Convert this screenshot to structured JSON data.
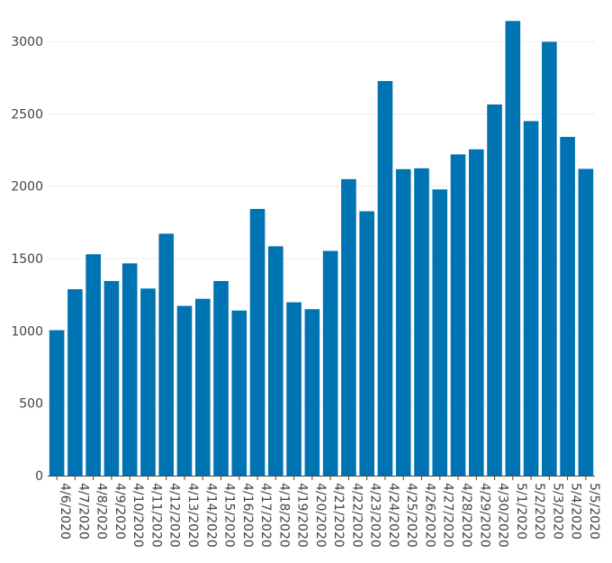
{
  "chart_data": {
    "type": "bar",
    "title": "",
    "xlabel": "",
    "ylabel": "",
    "categories": [
      "4/6/2020",
      "4/7/2020",
      "4/8/2020",
      "4/9/2020",
      "4/10/2020",
      "4/11/2020",
      "4/12/2020",
      "4/13/2020",
      "4/14/2020",
      "4/15/2020",
      "4/16/2020",
      "4/17/2020",
      "4/18/2020",
      "4/19/2020",
      "4/20/2020",
      "4/21/2020",
      "4/22/2020",
      "4/23/2020",
      "4/24/2020",
      "4/25/2020",
      "4/26/2020",
      "4/27/2020",
      "4/28/2020",
      "4/29/2020",
      "4/30/2020",
      "5/1/2020",
      "5/2/2020",
      "5/3/2020",
      "5/4/2020",
      "5/5/2020"
    ],
    "values": [
      1005,
      1288,
      1530,
      1345,
      1467,
      1293,
      1672,
      1173,
      1222,
      1345,
      1141,
      1843,
      1585,
      1198,
      1150,
      1553,
      2049,
      1827,
      2727,
      2118,
      2124,
      1978,
      2220,
      2255,
      2565,
      3142,
      2450,
      2998,
      2341,
      2120
    ],
    "ylim": [
      0,
      3150
    ],
    "yticks": [
      0,
      500,
      1000,
      1500,
      2000,
      2500,
      3000
    ],
    "grid": true,
    "bar_color": "#0073b2",
    "grid_color": "#ececec",
    "axis_color": "#444444"
  }
}
